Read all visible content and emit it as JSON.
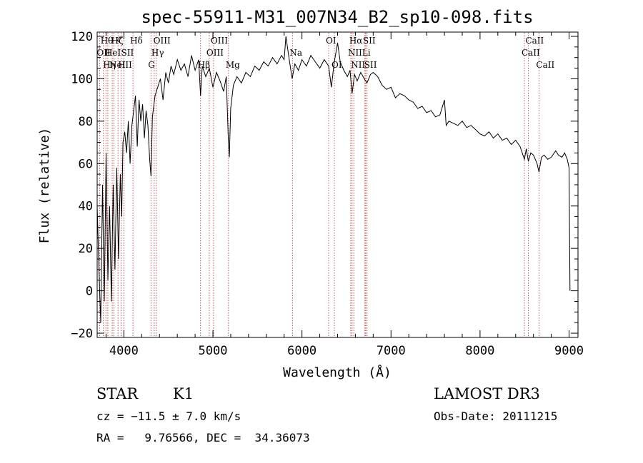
{
  "chart_data": {
    "type": "line",
    "title": "spec-55911-M31_007N34_B2_sp10-098.fits",
    "xlabel": "Wavelength (Å)",
    "ylabel": "Flux (relative)",
    "xlim": [
      3700,
      9100
    ],
    "ylim": [
      -22,
      122
    ],
    "xticks": [
      4000,
      5000,
      6000,
      7000,
      8000,
      9000
    ],
    "yticks": [
      -20,
      0,
      20,
      40,
      60,
      80,
      100,
      120
    ],
    "grid": false,
    "series": [
      {
        "name": "flux",
        "points": [
          [
            3700,
            40
          ],
          [
            3720,
            10
          ],
          [
            3740,
            -15
          ],
          [
            3760,
            50
          ],
          [
            3780,
            -5
          ],
          [
            3800,
            65
          ],
          [
            3820,
            5
          ],
          [
            3840,
            40
          ],
          [
            3860,
            -5
          ],
          [
            3880,
            50
          ],
          [
            3900,
            10
          ],
          [
            3920,
            58
          ],
          [
            3940,
            15
          ],
          [
            3960,
            55
          ],
          [
            3975,
            35
          ],
          [
            3990,
            70
          ],
          [
            4010,
            75
          ],
          [
            4030,
            65
          ],
          [
            4050,
            80
          ],
          [
            4070,
            60
          ],
          [
            4090,
            78
          ],
          [
            4110,
            85
          ],
          [
            4130,
            92
          ],
          [
            4150,
            68
          ],
          [
            4170,
            90
          ],
          [
            4190,
            80
          ],
          [
            4210,
            88
          ],
          [
            4230,
            72
          ],
          [
            4250,
            85
          ],
          [
            4270,
            78
          ],
          [
            4290,
            62
          ],
          [
            4305,
            54
          ],
          [
            4320,
            82
          ],
          [
            4350,
            92
          ],
          [
            4380,
            96
          ],
          [
            4410,
            100
          ],
          [
            4440,
            90
          ],
          [
            4470,
            103
          ],
          [
            4500,
            98
          ],
          [
            4530,
            106
          ],
          [
            4560,
            102
          ],
          [
            4600,
            109
          ],
          [
            4640,
            104
          ],
          [
            4680,
            107
          ],
          [
            4720,
            101
          ],
          [
            4760,
            111
          ],
          [
            4800,
            104
          ],
          [
            4840,
            109
          ],
          [
            4861,
            92
          ],
          [
            4880,
            106
          ],
          [
            4920,
            101
          ],
          [
            4960,
            105
          ],
          [
            5000,
            96
          ],
          [
            5040,
            103
          ],
          [
            5080,
            99
          ],
          [
            5120,
            94
          ],
          [
            5150,
            101
          ],
          [
            5172,
            72
          ],
          [
            5184,
            63
          ],
          [
            5200,
            86
          ],
          [
            5230,
            97
          ],
          [
            5270,
            101
          ],
          [
            5320,
            98
          ],
          [
            5370,
            103
          ],
          [
            5420,
            101
          ],
          [
            5470,
            106
          ],
          [
            5520,
            104
          ],
          [
            5570,
            108
          ],
          [
            5620,
            106
          ],
          [
            5670,
            110
          ],
          [
            5720,
            107
          ],
          [
            5770,
            111
          ],
          [
            5800,
            109
          ],
          [
            5820,
            120
          ],
          [
            5850,
            111
          ],
          [
            5890,
            100
          ],
          [
            5920,
            107
          ],
          [
            5960,
            104
          ],
          [
            6000,
            109
          ],
          [
            6050,
            106
          ],
          [
            6100,
            111
          ],
          [
            6150,
            108
          ],
          [
            6200,
            105
          ],
          [
            6250,
            109
          ],
          [
            6300,
            106
          ],
          [
            6330,
            96
          ],
          [
            6360,
            107
          ],
          [
            6400,
            117
          ],
          [
            6430,
            108
          ],
          [
            6470,
            104
          ],
          [
            6510,
            101
          ],
          [
            6540,
            104
          ],
          [
            6563,
            93
          ],
          [
            6590,
            102
          ],
          [
            6620,
            99
          ],
          [
            6660,
            103
          ],
          [
            6700,
            100
          ],
          [
            6730,
            98
          ],
          [
            6770,
            102
          ],
          [
            6800,
            103
          ],
          [
            6850,
            101
          ],
          [
            6900,
            97
          ],
          [
            6950,
            95
          ],
          [
            7000,
            96
          ],
          [
            7050,
            91
          ],
          [
            7100,
            93
          ],
          [
            7150,
            92
          ],
          [
            7200,
            90
          ],
          [
            7250,
            89
          ],
          [
            7300,
            86
          ],
          [
            7350,
            87
          ],
          [
            7400,
            84
          ],
          [
            7450,
            85
          ],
          [
            7500,
            82
          ],
          [
            7550,
            83
          ],
          [
            7600,
            90
          ],
          [
            7620,
            78
          ],
          [
            7650,
            80
          ],
          [
            7700,
            79
          ],
          [
            7750,
            78
          ],
          [
            7800,
            80
          ],
          [
            7850,
            77
          ],
          [
            7900,
            78
          ],
          [
            7950,
            76
          ],
          [
            8000,
            74
          ],
          [
            8050,
            73
          ],
          [
            8100,
            75
          ],
          [
            8150,
            72
          ],
          [
            8200,
            74
          ],
          [
            8250,
            71
          ],
          [
            8300,
            72
          ],
          [
            8350,
            69
          ],
          [
            8400,
            71
          ],
          [
            8450,
            68
          ],
          [
            8498,
            62
          ],
          [
            8520,
            67
          ],
          [
            8542,
            61
          ],
          [
            8570,
            65
          ],
          [
            8600,
            64
          ],
          [
            8640,
            60
          ],
          [
            8662,
            56
          ],
          [
            8690,
            63
          ],
          [
            8720,
            64
          ],
          [
            8760,
            62
          ],
          [
            8800,
            63
          ],
          [
            8850,
            66
          ],
          [
            8880,
            64
          ],
          [
            8920,
            63
          ],
          [
            8950,
            65
          ],
          [
            8980,
            62
          ],
          [
            9000,
            58
          ],
          [
            9010,
            0
          ]
        ]
      }
    ],
    "lines": [
      {
        "wl": 3727,
        "label": "OII",
        "row": 1
      },
      {
        "wl": 3770,
        "label": "Hθ",
        "row": 0
      },
      {
        "wl": 3798,
        "label": "Hη",
        "row": 2
      },
      {
        "wl": 3820,
        "label": "HeI",
        "row": 1
      },
      {
        "wl": 3869,
        "label": "NeIII",
        "row": 2
      },
      {
        "wl": 3889,
        "label": "Hζ",
        "row": 0
      },
      {
        "wl": 3934,
        "label": "K",
        "row": 0
      },
      {
        "wl": 3968,
        "label": "H",
        "row": 2
      },
      {
        "wl": 4001,
        "label": "SII",
        "row": 1
      },
      {
        "wl": 4102,
        "label": "Hδ",
        "row": 0
      },
      {
        "wl": 4304,
        "label": "G",
        "row": 2
      },
      {
        "wl": 4341,
        "label": "Hγ",
        "row": 1
      },
      {
        "wl": 4363,
        "label": "OIII",
        "row": 0
      },
      {
        "wl": 4861,
        "label": "Hβ",
        "row": 2
      },
      {
        "wl": 4959,
        "label": "OIII",
        "row": 1
      },
      {
        "wl": 5007,
        "label": "OIII",
        "row": 0
      },
      {
        "wl": 5175,
        "label": "Mg",
        "row": 2
      },
      {
        "wl": 5893,
        "label": "Na",
        "row": 1
      },
      {
        "wl": 6300,
        "label": "OI",
        "row": 0
      },
      {
        "wl": 6364,
        "label": "OI",
        "row": 2
      },
      {
        "wl": 6548,
        "label": "NII",
        "row": 1
      },
      {
        "wl": 6563,
        "label": "Hα",
        "row": 0
      },
      {
        "wl": 6583,
        "label": "NII",
        "row": 2
      },
      {
        "wl": 6707,
        "label": "Li",
        "row": 1
      },
      {
        "wl": 6716,
        "label": "SII",
        "row": 0
      },
      {
        "wl": 6731,
        "label": "SII",
        "row": 2
      },
      {
        "wl": 8498,
        "label": "CaII",
        "row": 1
      },
      {
        "wl": 8542,
        "label": "CaII",
        "row": 0
      },
      {
        "wl": 8662,
        "label": "CaII",
        "row": 2
      }
    ]
  },
  "info": {
    "class_label": "STAR",
    "subclass": "K1",
    "survey": "LAMOST DR3",
    "cz": "cz = −11.5 ± 7.0 km/s",
    "obs_date": "Obs-Date: 20111215",
    "coords": "RA =   9.76566, DEC =  34.36073"
  }
}
